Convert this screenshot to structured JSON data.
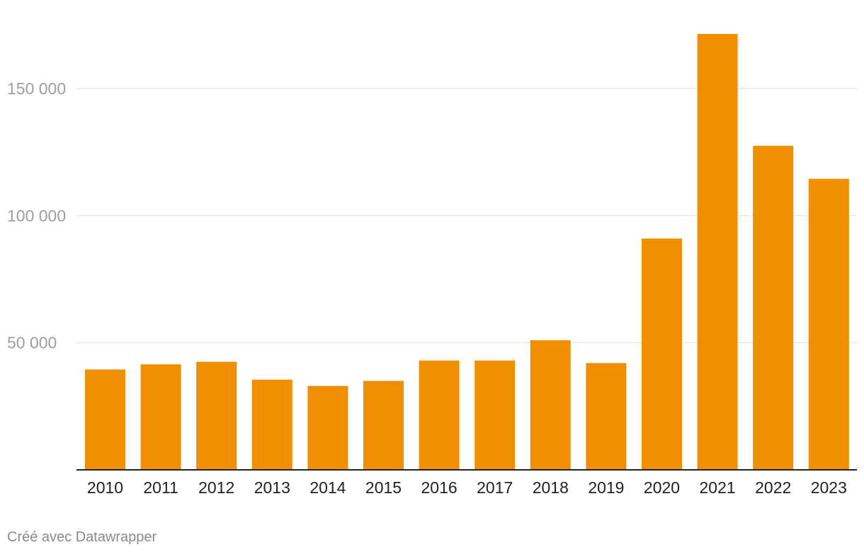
{
  "chart_data": {
    "type": "bar",
    "categories": [
      "2010",
      "2011",
      "2012",
      "2013",
      "2014",
      "2015",
      "2016",
      "2017",
      "2018",
      "2019",
      "2020",
      "2021",
      "2022",
      "2023"
    ],
    "values": [
      39500,
      41500,
      42500,
      35500,
      33000,
      35000,
      43000,
      43000,
      51000,
      42000,
      91000,
      171500,
      127500,
      114500
    ],
    "y_ticks": [
      50000,
      100000,
      150000
    ],
    "y_tick_labels": [
      "50 000",
      "100 000",
      "150 000"
    ],
    "ylim": [
      0,
      180000
    ],
    "grid": true,
    "bar_color": "#f09000",
    "gridline_color": "#e2e2e2",
    "baseline_color": "#222222"
  },
  "footer": {
    "credit": "Créé avec Datawrapper"
  }
}
